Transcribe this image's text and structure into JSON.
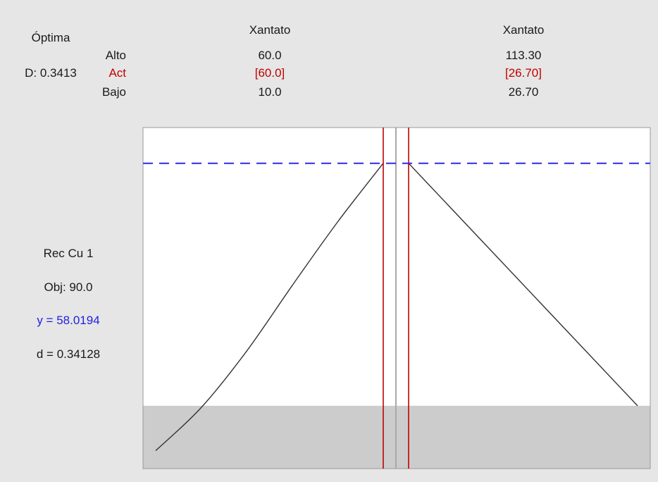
{
  "optimal": {
    "title": "Óptima",
    "d_label": "D: 0.3413"
  },
  "row_labels": {
    "high": "Alto",
    "current": "Act",
    "low": "Bajo"
  },
  "factors": [
    {
      "name": "Xantato",
      "high": "60.0",
      "current": "[60.0]",
      "low": "10.0"
    },
    {
      "name": "Xantato",
      "high": "113.30",
      "current": "[26.70]",
      "low": "26.70"
    }
  ],
  "response": {
    "name": "Rec Cu 1",
    "goal": "Obj: 90.0",
    "y": "y = 58.0194",
    "d": "d = 0.34128"
  },
  "colors": {
    "background": "#e6e6e6",
    "plot_area": "#ffffff",
    "shaded_band": "#cccccc",
    "current_line": "#c00000",
    "target_line": "#2a2af0",
    "curve": "#333333"
  },
  "chart_data": {
    "type": "line",
    "panels": [
      {
        "factor": "Xantato",
        "x_range": [
          10.0,
          60.0
        ],
        "current_x": 60.0,
        "curve": [
          {
            "x": 10.0,
            "y": 26.0
          },
          {
            "x": 20.0,
            "y": 30.8
          },
          {
            "x": 30.0,
            "y": 37.1
          },
          {
            "x": 40.0,
            "y": 44.4
          },
          {
            "x": 50.0,
            "y": 51.5
          },
          {
            "x": 60.0,
            "y": 58.0194
          }
        ]
      },
      {
        "factor": "Xantato",
        "x_range": [
          26.7,
          113.3
        ],
        "current_x": 26.7,
        "curve": [
          {
            "x": 26.7,
            "y": 58.0194
          },
          {
            "x": 113.3,
            "y": 31.0
          }
        ]
      }
    ],
    "y_range": [
      24.0,
      62.0
    ],
    "shaded_below_y": 31.0,
    "predicted_y": 58.0194,
    "grid": false
  }
}
